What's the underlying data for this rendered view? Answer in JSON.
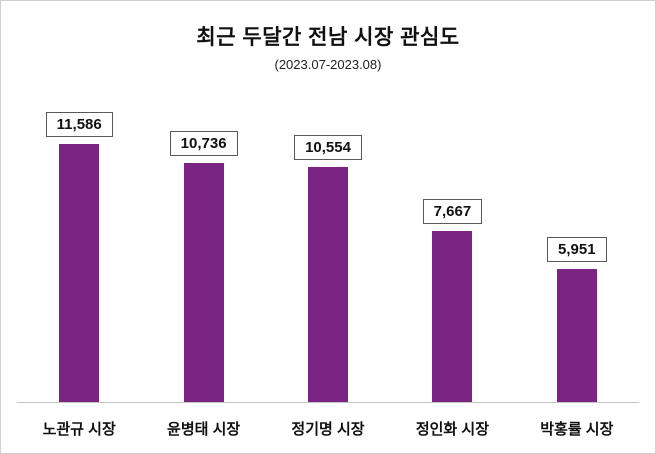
{
  "chart_data": {
    "type": "bar",
    "title": "최근 두달간 전남 시장 관심도",
    "subtitle": "(2023.07-2023.08)",
    "categories": [
      "노관규 시장",
      "윤병태 시장",
      "정기명 시장",
      "정인화 시장",
      "박홍률 시장"
    ],
    "values": [
      11586,
      10736,
      10554,
      7667,
      5951
    ],
    "value_labels": [
      "11,586",
      "10,736",
      "10,554",
      "7,667",
      "5,951"
    ],
    "xlabel": "",
    "ylabel": "",
    "ylim": [
      0,
      12000
    ],
    "grid": false,
    "legend": false,
    "bar_color": "#7a2483",
    "axis_line_color": "#c4c4c4",
    "label_box_border_color": "#595959"
  }
}
